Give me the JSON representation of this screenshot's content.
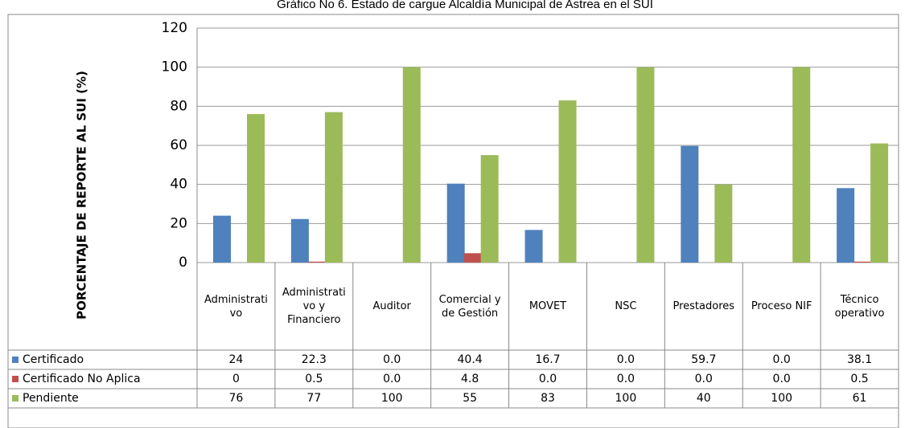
{
  "chart_data": {
    "type": "bar",
    "title": "Gráfico No 6. Estado de cargue Alcaldía Municipal de Astrea  en el SUI",
    "y_label": "PORCENTAJE DE  REPORTE AL SUI (%)",
    "categories": [
      "Administrativo",
      "Administrativo y Financiero",
      "Auditor",
      "Comercial y de Gestión",
      "MOVET",
      "NSC",
      "Prestadores",
      "Proceso NIF",
      "Técnico operativo"
    ],
    "series": [
      {
        "name": "Certificado",
        "color": "#4f81bd",
        "values": [
          24,
          22.3,
          0,
          40.4,
          16.7,
          0,
          59.7,
          0,
          38.1
        ],
        "value_labels": [
          "24",
          "22.3",
          "0.0",
          "40.4",
          "16.7",
          "0.0",
          "59.7",
          "0.0",
          "38.1"
        ]
      },
      {
        "name": "Certificado No Aplica",
        "color": "#c0504d",
        "values": [
          0,
          0.5,
          0,
          4.8,
          0,
          0,
          0,
          0,
          0.5
        ],
        "value_labels": [
          "0",
          "0.5",
          "0.0",
          "4.8",
          "0.0",
          "0.0",
          "0.0",
          "0.0",
          "0.5"
        ]
      },
      {
        "name": "Pendiente",
        "color": "#9bbb59",
        "values": [
          76,
          77,
          100,
          55,
          83,
          100,
          40,
          100,
          61
        ],
        "value_labels": [
          "76",
          "77",
          "100",
          "55",
          "83",
          "100",
          "40",
          "100",
          "61"
        ]
      }
    ],
    "ylim": [
      0,
      120
    ],
    "yticks": [
      0,
      20,
      40,
      60,
      80,
      100,
      120
    ],
    "grid": true
  }
}
